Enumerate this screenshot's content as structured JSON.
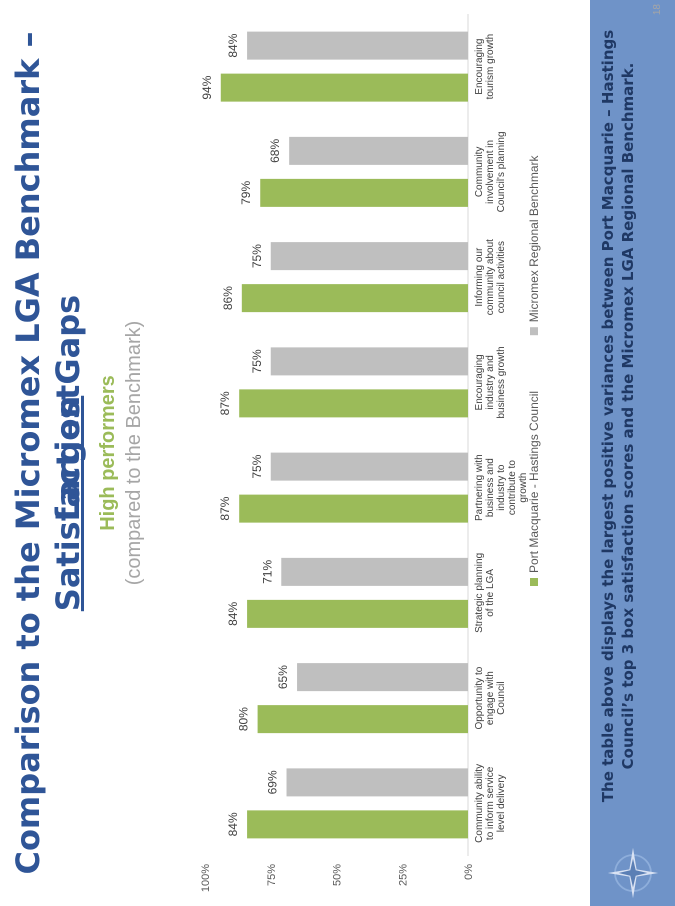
{
  "header": {
    "title_line1": "Comparison to the Micromex LGA Benchmark – Largest",
    "title_line2_underlined": "Satisfaction",
    "title_line2_rest": " Gaps",
    "subtitle_line1": "High performers",
    "subtitle_line2": "(compared to the Benchmark)"
  },
  "footer": {
    "text": "The table above displays the largest positive variances between Port Macquarie – Hastings Council’s top 3 box satisfaction scores and the Micromex LGA Regional Benchmark.",
    "page_number": "18",
    "logo_icon": "compass-rose-icon"
  },
  "colors": {
    "series_council": "#9bbb59",
    "series_benchmark": "#bfbfbf",
    "title": "#2f5597",
    "subtitle_green": "#9bbb59",
    "subtitle_grey": "#a6a6a6",
    "banner": "#6f93c8"
  },
  "chart_data": {
    "type": "bar",
    "orientation": "vertical",
    "categories": [
      "Community ability to inform service level delivery",
      "Opportunity to engage with Council",
      "Strategic planning of the LGA",
      "Partnering with business and industry to contribute to growth",
      "Encouraging industry and business growth",
      "Informing our community about council activities",
      "Community involvement in Council's planning",
      "Encouraging tourism growth"
    ],
    "series": [
      {
        "name": "Port Macquarie - Hastings Council",
        "values": [
          84,
          80,
          84,
          87,
          87,
          86,
          79,
          94
        ],
        "labels": [
          "84%",
          "80%",
          "84%",
          "87%",
          "87%",
          "86%",
          "79%",
          "94%"
        ]
      },
      {
        "name": "Micromex Regional Benchmark",
        "values": [
          69,
          65,
          71,
          75,
          75,
          75,
          68,
          84
        ],
        "labels": [
          "69%",
          "65%",
          "71%",
          "75%",
          "75%",
          "75%",
          "68%",
          "84%"
        ]
      }
    ],
    "y_ticks": [
      0,
      25,
      50,
      75,
      100
    ],
    "y_tick_labels": [
      "0%",
      "25%",
      "50%",
      "75%",
      "100%"
    ],
    "ylim": [
      0,
      100
    ],
    "grid": false,
    "legend_position": "bottom"
  }
}
